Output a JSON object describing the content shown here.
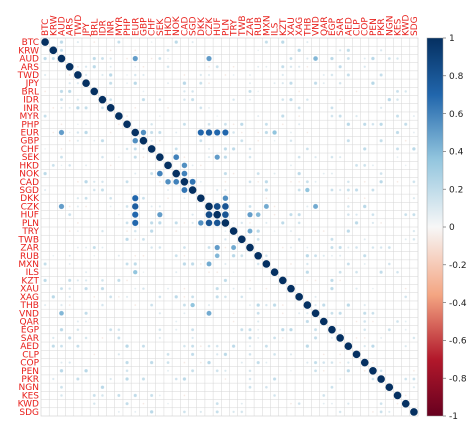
{
  "chart_data": {
    "type": "heatmap",
    "title": "",
    "labels": [
      "BTC",
      "KRW",
      "AUD",
      "ARS",
      "TWD",
      "JPY",
      "BRL",
      "IDR",
      "INR",
      "MYR",
      "PHP",
      "EUR",
      "GBP",
      "CHF",
      "SEK",
      "HKD",
      "NOK",
      "CAD",
      "SGD",
      "DKK",
      "CZK",
      "HUF",
      "PLN",
      "TRY",
      "TWB",
      "ZAR",
      "RUB",
      "MXN",
      "ILS",
      "KZT",
      "XAU",
      "XAG",
      "THB",
      "VND",
      "QAR",
      "EGP",
      "SAR",
      "AED",
      "CLP",
      "COP",
      "PEN",
      "PKR",
      "NGN",
      "KES",
      "KWD",
      "SDG"
    ],
    "matrix_style": "correlation, circles sized and coloured by coefficient, diagonal = 1",
    "colorbar": {
      "ticks": [
        1,
        0.8,
        0.6,
        0.4,
        0.2,
        0,
        -0.2,
        -0.4,
        -0.6,
        -0.8,
        -1
      ],
      "range": [
        -1,
        1
      ],
      "high_color": "#053061",
      "mid_color": "#f7f7f7",
      "low_color": "#67001f"
    },
    "grid": true,
    "strong_correlations": [
      {
        "a": "CZK",
        "b": "HUF",
        "value": 0.85
      },
      {
        "a": "CZK",
        "b": "PLN",
        "value": 0.8
      },
      {
        "a": "HUF",
        "b": "PLN",
        "value": 0.8
      },
      {
        "a": "EUR",
        "b": "CZK",
        "value": 0.75
      },
      {
        "a": "EUR",
        "b": "HUF",
        "value": 0.7
      },
      {
        "a": "EUR",
        "b": "PLN",
        "value": 0.7
      },
      {
        "a": "EUR",
        "b": "DKK",
        "value": 0.7
      },
      {
        "a": "CAD",
        "b": "SGD",
        "value": 0.65
      },
      {
        "a": "CAD",
        "b": "NOK",
        "value": 0.6
      },
      {
        "a": "SEK",
        "b": "NOK",
        "value": 0.6
      },
      {
        "a": "HKD",
        "b": "CAD",
        "value": 0.55
      },
      {
        "a": "GBP",
        "b": "EUR",
        "value": 0.55
      },
      {
        "a": "AUD",
        "b": "EUR",
        "value": 0.5
      },
      {
        "a": "AUD",
        "b": "CZK",
        "value": 0.5
      },
      {
        "a": "SEK",
        "b": "HUF",
        "value": 0.5
      },
      {
        "a": "DKK",
        "b": "PLN",
        "value": 0.55
      },
      {
        "a": "MXN",
        "b": "CZK",
        "value": 0.45
      },
      {
        "a": "ZAR",
        "b": "HUF",
        "value": 0.5
      },
      {
        "a": "ZAR",
        "b": "TRY",
        "value": 0.45
      },
      {
        "a": "VND",
        "b": "CZK",
        "value": 0.45
      },
      {
        "a": "VND",
        "b": "AUD",
        "value": 0.4
      },
      {
        "a": "RUB",
        "b": "HUF",
        "value": 0.4
      },
      {
        "a": "ILS",
        "b": "EUR",
        "value": 0.35
      },
      {
        "a": "THB",
        "b": "SGD",
        "value": 0.35
      }
    ]
  }
}
